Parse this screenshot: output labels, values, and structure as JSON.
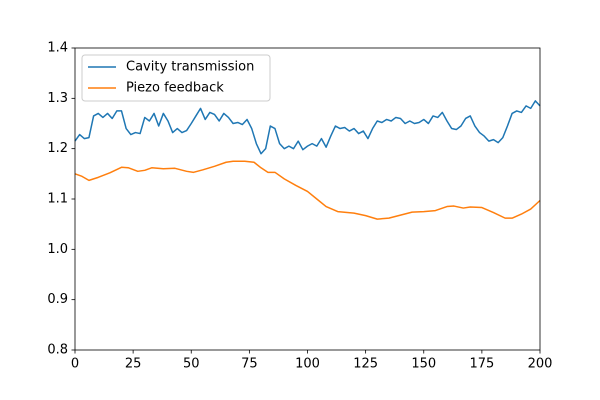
{
  "chart_data": {
    "type": "line",
    "xlim": [
      0,
      200
    ],
    "ylim": [
      0.8,
      1.4
    ],
    "xticks": [
      0,
      25,
      50,
      75,
      100,
      125,
      150,
      175,
      200
    ],
    "yticks": [
      0.8,
      0.9,
      {
        "value": 1,
        "label": "1.0"
      },
      1.1,
      1.2,
      1.3,
      1.4
    ],
    "legend": "upper left",
    "series": [
      {
        "name": "Cavity transmission",
        "color": "#1f77b4",
        "x": [
          0,
          2,
          4,
          6,
          8,
          10,
          12,
          14,
          16,
          18,
          20,
          22,
          24,
          26,
          28,
          30,
          32,
          34,
          36,
          38,
          40,
          42,
          44,
          46,
          48,
          50,
          52,
          54,
          56,
          58,
          60,
          62,
          64,
          66,
          68,
          70,
          72,
          74,
          76,
          78,
          80,
          82,
          84,
          86,
          88,
          90,
          92,
          94,
          96,
          98,
          100,
          102,
          104,
          106,
          108,
          110,
          112,
          114,
          116,
          118,
          120,
          122,
          124,
          126,
          128,
          130,
          132,
          134,
          136,
          138,
          140,
          142,
          144,
          146,
          148,
          150,
          152,
          154,
          156,
          158,
          160,
          162,
          164,
          166,
          168,
          170,
          172,
          174,
          176,
          178,
          180,
          182,
          184,
          186,
          188,
          190,
          192,
          194,
          196,
          198,
          200
        ],
        "values": [
          1.215,
          1.228,
          1.22,
          1.222,
          1.265,
          1.27,
          1.262,
          1.27,
          1.26,
          1.275,
          1.275,
          1.24,
          1.228,
          1.232,
          1.23,
          1.262,
          1.255,
          1.27,
          1.245,
          1.27,
          1.255,
          1.232,
          1.24,
          1.232,
          1.236,
          1.25,
          1.265,
          1.28,
          1.258,
          1.272,
          1.268,
          1.255,
          1.27,
          1.262,
          1.25,
          1.252,
          1.248,
          1.258,
          1.24,
          1.21,
          1.19,
          1.2,
          1.245,
          1.24,
          1.21,
          1.2,
          1.205,
          1.2,
          1.215,
          1.198,
          1.205,
          1.21,
          1.205,
          1.22,
          1.203,
          1.225,
          1.245,
          1.24,
          1.242,
          1.235,
          1.24,
          1.23,
          1.235,
          1.22,
          1.24,
          1.255,
          1.252,
          1.258,
          1.255,
          1.262,
          1.26,
          1.25,
          1.255,
          1.25,
          1.252,
          1.258,
          1.25,
          1.265,
          1.262,
          1.272,
          1.255,
          1.24,
          1.238,
          1.245,
          1.26,
          1.265,
          1.245,
          1.232,
          1.225,
          1.215,
          1.218,
          1.212,
          1.222,
          1.245,
          1.27,
          1.275,
          1.272,
          1.285,
          1.28,
          1.295,
          1.285
        ]
      },
      {
        "name": "Piezo feedback",
        "color": "#ff7f0e",
        "x": [
          0,
          3,
          6,
          10,
          15,
          20,
          23,
          27,
          30,
          33,
          38,
          43,
          48,
          51,
          55,
          60,
          65,
          68,
          73,
          77,
          80,
          83,
          86,
          90,
          95,
          100,
          104,
          108,
          113,
          120,
          125,
          130,
          135,
          140,
          145,
          150,
          155,
          160,
          163,
          167,
          170,
          175,
          180,
          185,
          188,
          192,
          196,
          200
        ],
        "values": [
          1.15,
          1.145,
          1.137,
          1.143,
          1.152,
          1.163,
          1.162,
          1.155,
          1.157,
          1.162,
          1.16,
          1.161,
          1.155,
          1.153,
          1.158,
          1.165,
          1.173,
          1.175,
          1.175,
          1.173,
          1.162,
          1.153,
          1.153,
          1.14,
          1.127,
          1.115,
          1.1,
          1.085,
          1.075,
          1.072,
          1.067,
          1.06,
          1.062,
          1.068,
          1.074,
          1.075,
          1.077,
          1.085,
          1.086,
          1.082,
          1.084,
          1.083,
          1.073,
          1.062,
          1.062,
          1.07,
          1.08,
          1.097
        ]
      }
    ]
  }
}
